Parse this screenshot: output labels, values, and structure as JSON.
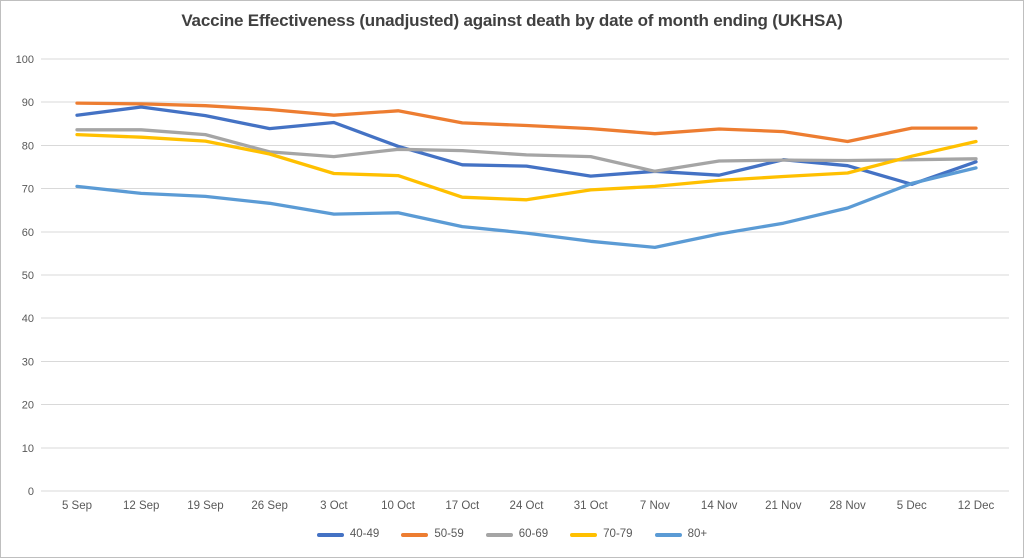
{
  "chart_data": {
    "type": "line",
    "title": "Vaccine Effectiveness (unadjusted) against death by date of month ending (UKHSA)",
    "xlabel": "",
    "ylabel": "",
    "ylim": [
      0,
      100
    ],
    "ytick_step": 10,
    "grid": true,
    "legend_position": "bottom",
    "categories": [
      "5 Sep",
      "12 Sep",
      "19 Sep",
      "26 Sep",
      "3 Oct",
      "10 Oct",
      "17 Oct",
      "24 Oct",
      "31 Oct",
      "7 Nov",
      "14 Nov",
      "21 Nov",
      "28 Nov",
      "5 Dec",
      "12 Dec"
    ],
    "series": [
      {
        "name": "40-49",
        "color": "#4472C4",
        "values": [
          87.0,
          88.9,
          86.9,
          83.9,
          85.3,
          79.8,
          75.5,
          75.2,
          72.9,
          74.0,
          73.1,
          76.7,
          75.3,
          71.0,
          76.2
        ]
      },
      {
        "name": "50-59",
        "color": "#ED7D31",
        "values": [
          89.8,
          89.6,
          89.2,
          88.3,
          87.0,
          88.0,
          85.2,
          84.6,
          83.9,
          82.7,
          83.8,
          83.2,
          80.9,
          84.0,
          84.0
        ]
      },
      {
        "name": "60-69",
        "color": "#A5A5A5",
        "values": [
          83.6,
          83.6,
          82.5,
          78.5,
          77.4,
          79.1,
          78.8,
          77.8,
          77.4,
          74.0,
          76.4,
          76.6,
          76.5,
          76.7,
          76.9
        ]
      },
      {
        "name": "70-79",
        "color": "#FFC000",
        "values": [
          82.5,
          81.9,
          81.0,
          78.0,
          73.5,
          73.0,
          68.0,
          67.4,
          69.7,
          70.5,
          71.9,
          72.8,
          73.6,
          77.5,
          80.9
        ]
      },
      {
        "name": "80+",
        "color": "#5B9BD5",
        "values": [
          70.5,
          68.9,
          68.2,
          66.6,
          64.1,
          64.4,
          61.2,
          59.7,
          57.8,
          56.4,
          59.5,
          62.0,
          65.5,
          71.2,
          74.8
        ]
      }
    ]
  },
  "style": {
    "grid_color": "#D9D9D9",
    "axis_text_color": "#595959",
    "title_color": "#404040",
    "frame_border_color": "#BFBFBF",
    "background": "#FFFFFF"
  }
}
